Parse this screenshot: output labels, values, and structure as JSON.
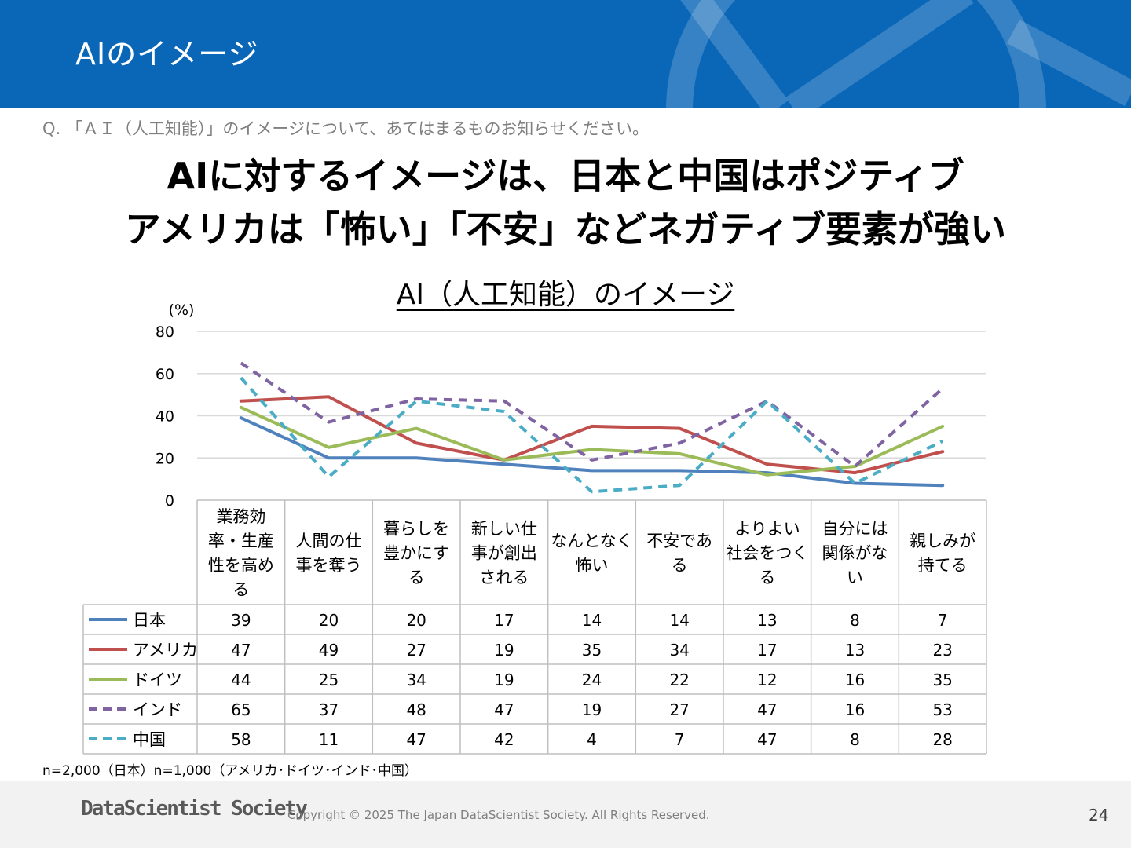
{
  "header": {
    "title": "AIのイメージ",
    "color": "#0a67b8"
  },
  "question": "Q. 「ＡＩ（人工知能）」のイメージについて、あてはまるものお知らせください。",
  "headline": {
    "line1": "AIに対するイメージは、日本と中国はポジティブ",
    "line2": "アメリカは「怖い」「不安」などネガティブ要素が強い"
  },
  "chart_data": {
    "type": "line",
    "title": "AI（人工知能）のイメージ",
    "ylabel": "(%)",
    "ylim": [
      0,
      80
    ],
    "yticks": [
      0,
      20,
      40,
      60,
      80
    ],
    "grid": true,
    "categories": [
      [
        "業務効",
        "率・生産",
        "性を高め",
        "る"
      ],
      [
        "人間の仕",
        "事を奪う"
      ],
      [
        "暮らしを",
        "豊かにす",
        "る"
      ],
      [
        "新しい仕",
        "事が創出",
        "される"
      ],
      [
        "なんとなく",
        "怖い"
      ],
      [
        "不安であ",
        "る"
      ],
      [
        "よりよい",
        "社会をつく",
        "る"
      ],
      [
        "自分には",
        "関係がな",
        "い"
      ],
      [
        "親しみが",
        "持てる"
      ]
    ],
    "series": [
      {
        "name": "日本",
        "color": "#4f81bd",
        "dashed": false,
        "values": [
          39,
          20,
          20,
          17,
          14,
          14,
          13,
          8,
          7
        ]
      },
      {
        "name": "アメリカ",
        "color": "#c0504d",
        "dashed": false,
        "values": [
          47,
          49,
          27,
          19,
          35,
          34,
          17,
          13,
          23
        ]
      },
      {
        "name": "ドイツ",
        "color": "#9bbb59",
        "dashed": false,
        "values": [
          44,
          25,
          34,
          19,
          24,
          22,
          12,
          16,
          35
        ]
      },
      {
        "name": "インド",
        "color": "#8064a2",
        "dashed": true,
        "values": [
          65,
          37,
          48,
          47,
          19,
          27,
          47,
          16,
          53
        ]
      },
      {
        "name": "中国",
        "color": "#4bacc6",
        "dashed": true,
        "values": [
          58,
          11,
          47,
          42,
          4,
          7,
          47,
          8,
          28
        ]
      }
    ]
  },
  "sample_note": "n=2,000（日本）n=1,000（アメリカ･ドイツ･インド･中国）",
  "footer": {
    "logo": "DataScientist Society",
    "copyright": "Copyright © 2025 The Japan DataScientist Society. All Rights Reserved.",
    "page_number": "24"
  }
}
